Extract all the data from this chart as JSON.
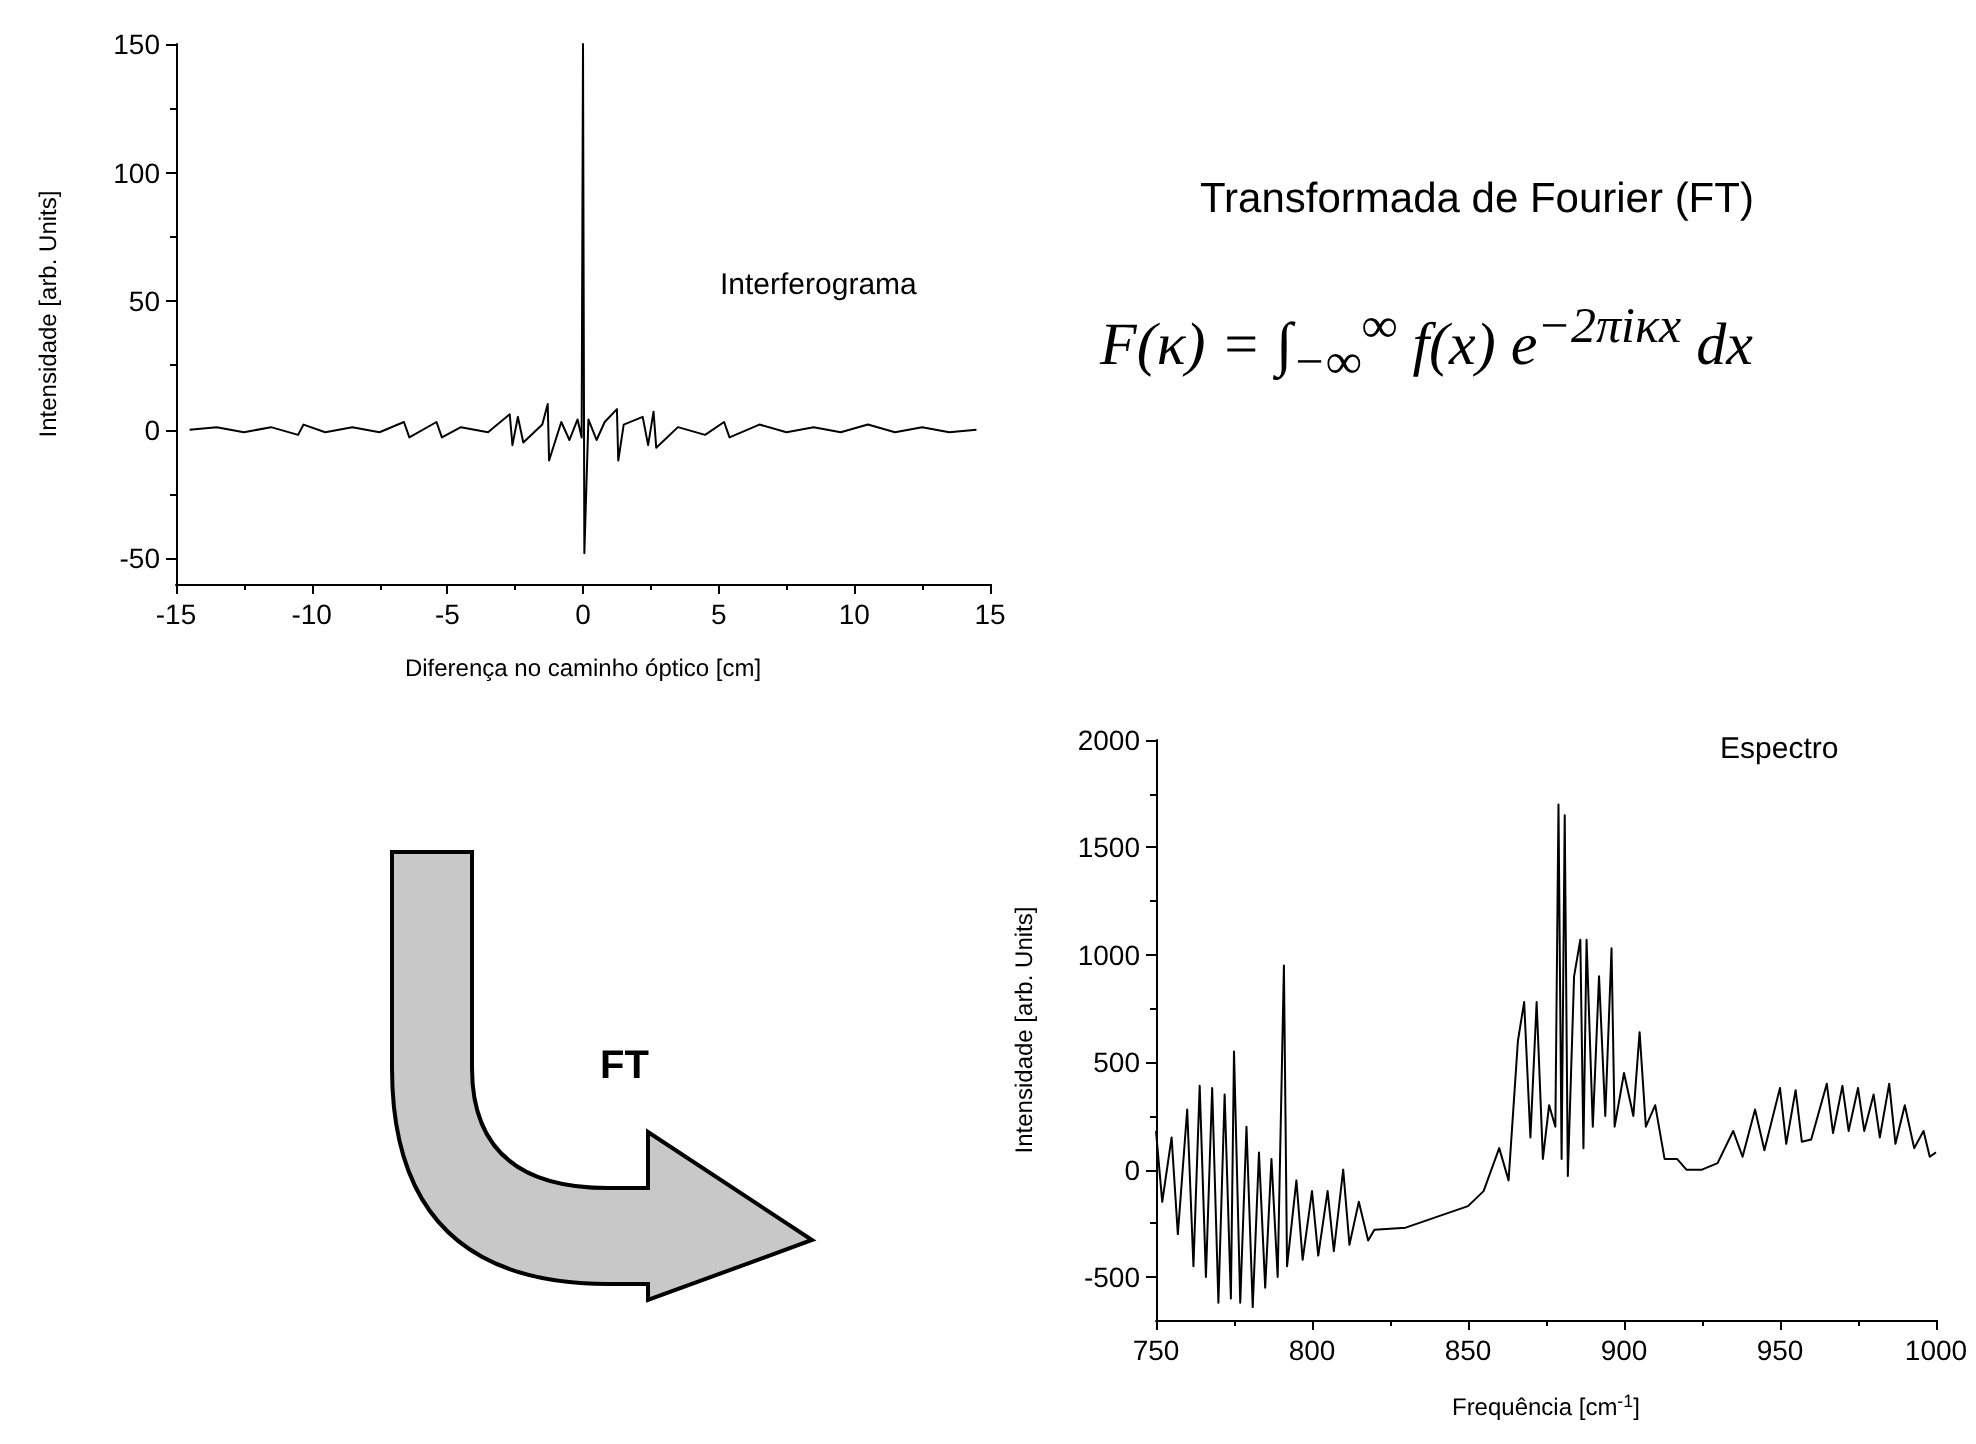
{
  "chart_data": [
    {
      "type": "line",
      "title": "Interferograma",
      "xlabel": "Diferença no caminho óptico [cm]",
      "ylabel": "Intensidade [arb. Units]",
      "xlim": [
        -15,
        15
      ],
      "ylim": [
        -60,
        150
      ],
      "xticks": [
        -15,
        -10,
        -5,
        0,
        5,
        10,
        15
      ],
      "yticks": [
        -50,
        0,
        50,
        100,
        150
      ],
      "grid": false,
      "marker": "none",
      "series": [
        {
          "color": "#000000",
          "x": [
            -14.5,
            -13.5,
            -12.5,
            -11.5,
            -10.5,
            -10.3,
            -9.5,
            -8.5,
            -7.5,
            -6.6,
            -6.4,
            -5.4,
            -5.2,
            -4.5,
            -3.5,
            -2.7,
            -2.6,
            -2.4,
            -2.2,
            -1.5,
            -1.3,
            -1.25,
            -0.8,
            -0.5,
            -0.2,
            -0.05,
            0,
            0.05,
            0.2,
            0.5,
            0.8,
            1.25,
            1.3,
            1.5,
            2.2,
            2.4,
            2.6,
            2.7,
            3.5,
            4.5,
            5.2,
            5.4,
            6.5,
            7.5,
            8.5,
            9.5,
            10.5,
            11.5,
            12.5,
            13.5,
            14.5
          ],
          "values": [
            0,
            1,
            -1,
            1,
            -2,
            2,
            -1,
            1,
            -1,
            3,
            -3,
            3,
            -3,
            1,
            -1,
            6,
            -6,
            5,
            -5,
            2,
            10,
            -12,
            3,
            -4,
            4,
            -3,
            150,
            -48,
            4,
            -4,
            3,
            8,
            -12,
            2,
            5,
            -6,
            7,
            -7,
            1,
            -2,
            3,
            -3,
            2,
            -1,
            1,
            -1,
            2,
            -1,
            1,
            -1,
            0
          ]
        }
      ]
    },
    {
      "type": "other",
      "title": "Transformada de Fourier (FT)",
      "annotations": [
        "F(κ) = ∫$_{−∞}$$^{∞}$ f(x) e$^{−2πiκx}$ dx",
        "FT"
      ]
    },
    {
      "type": "line",
      "title": "Espectro",
      "xlabel": "Frequência [cm$^{-1}$]",
      "ylabel": "Intensidade [arb. Units]",
      "xlim": [
        750,
        1000
      ],
      "ylim": [
        -700,
        2000
      ],
      "xticks": [
        750,
        800,
        850,
        900,
        950,
        1000
      ],
      "yticks": [
        -500,
        0,
        500,
        1000,
        1500,
        2000
      ],
      "grid": false,
      "marker": "none",
      "series": [
        {
          "color": "#000000",
          "x": [
            750,
            752,
            755,
            757,
            760,
            762,
            764,
            766,
            768,
            770,
            772,
            774,
            775,
            777,
            779,
            781,
            783,
            785,
            787,
            789,
            791,
            792,
            795,
            797,
            800,
            802,
            805,
            807,
            810,
            812,
            815,
            818,
            820,
            830,
            840,
            850,
            855,
            860,
            863,
            866,
            868,
            870,
            872,
            874,
            876,
            878,
            879,
            880,
            881,
            882,
            884,
            886,
            887,
            888,
            890,
            892,
            894,
            896,
            897,
            900,
            903,
            905,
            907,
            910,
            913,
            917,
            920,
            925,
            930,
            935,
            938,
            942,
            945,
            950,
            952,
            955,
            957,
            960,
            965,
            967,
            970,
            972,
            975,
            977,
            980,
            982,
            985,
            987,
            990,
            993,
            996,
            998,
            1000
          ],
          "values": [
            180,
            -150,
            150,
            -300,
            280,
            -450,
            390,
            -500,
            380,
            -620,
            350,
            -600,
            550,
            -620,
            200,
            -640,
            80,
            -550,
            50,
            -500,
            950,
            -450,
            -50,
            -420,
            -100,
            -400,
            -100,
            -380,
            0,
            -350,
            -150,
            -330,
            -280,
            -270,
            -220,
            -170,
            -100,
            100,
            -50,
            600,
            780,
            150,
            780,
            50,
            300,
            200,
            1700,
            50,
            1650,
            -30,
            900,
            1070,
            100,
            1070,
            200,
            900,
            250,
            1030,
            200,
            450,
            250,
            640,
            200,
            300,
            50,
            50,
            0,
            0,
            30,
            180,
            60,
            280,
            90,
            380,
            120,
            370,
            130,
            140,
            400,
            170,
            390,
            180,
            380,
            180,
            350,
            150,
            400,
            120,
            300,
            100,
            180,
            60,
            80
          ]
        }
      ]
    }
  ]
}
